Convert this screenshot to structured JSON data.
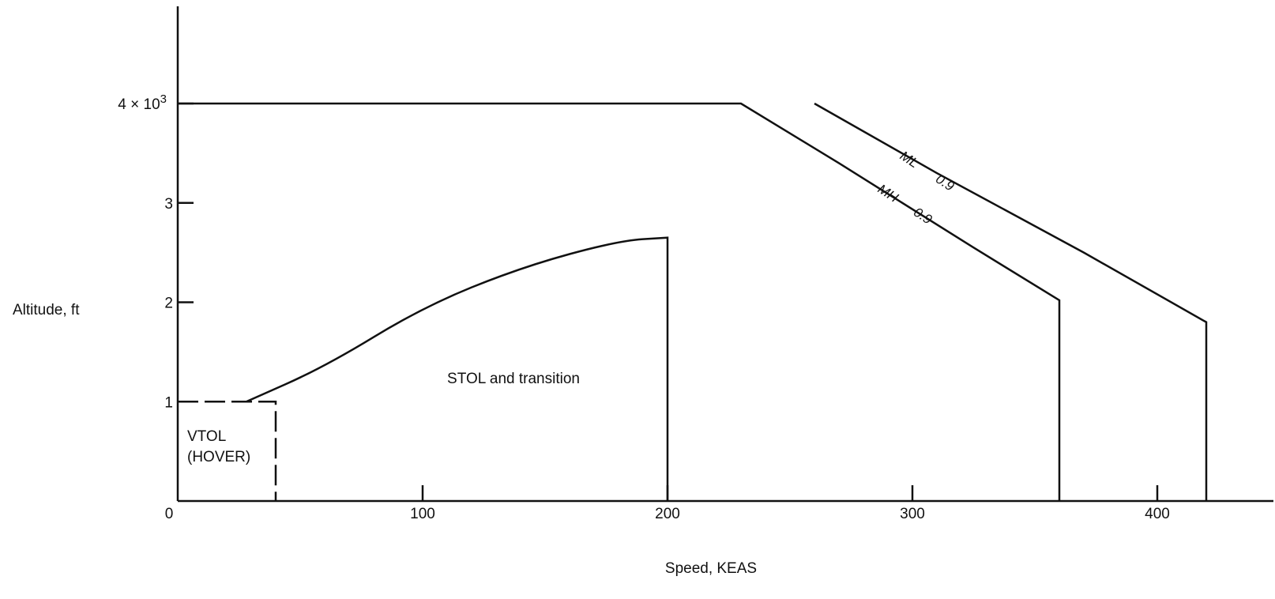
{
  "chart_data": {
    "type": "line",
    "title": "",
    "xlabel": "Speed, KEAS",
    "ylabel": "Altitude, ft",
    "xlim": [
      0,
      430
    ],
    "ylim": [
      0,
      4000
    ],
    "x_ticks": [
      {
        "value": 0,
        "label": "0"
      },
      {
        "value": 100,
        "label": "100"
      },
      {
        "value": 200,
        "label": "200"
      },
      {
        "value": 300,
        "label": "300"
      },
      {
        "value": 400,
        "label": "400"
      }
    ],
    "y_ticks": [
      {
        "value": 1000,
        "label": "1"
      },
      {
        "value": 2000,
        "label": "2"
      },
      {
        "value": 3000,
        "label": "3"
      },
      {
        "value": 4000,
        "label": "4 × 10",
        "sup": "3"
      }
    ],
    "series": [
      {
        "id": "vtol",
        "points": [
          [
            0,
            1000
          ],
          [
            40,
            1000
          ],
          [
            40,
            0
          ]
        ]
      },
      {
        "id": "stol",
        "points": [
          [
            28,
            1000
          ],
          [
            60,
            1350
          ],
          [
            100,
            1950
          ],
          [
            140,
            2350
          ],
          [
            180,
            2620
          ],
          [
            200,
            2650
          ],
          [
            200,
            0
          ]
        ]
      },
      {
        "id": "mh",
        "points": [
          [
            0,
            4000
          ],
          [
            230,
            4000
          ],
          [
            270,
            3400
          ],
          [
            325,
            2550
          ],
          [
            360,
            2020
          ],
          [
            360,
            0
          ]
        ]
      },
      {
        "id": "ml",
        "points": [
          [
            260,
            4000
          ],
          [
            310,
            3300
          ],
          [
            370,
            2500
          ],
          [
            420,
            1800
          ],
          [
            420,
            0
          ]
        ]
      }
    ],
    "region_labels": {
      "vtol_line1": "VTOL",
      "vtol_line2": "(HOVER)",
      "stol": "STOL and transition"
    },
    "curve_labels": {
      "ml": "ML",
      "ml_value": "0.9",
      "mh": "MH",
      "mh_value": "0.9"
    }
  }
}
